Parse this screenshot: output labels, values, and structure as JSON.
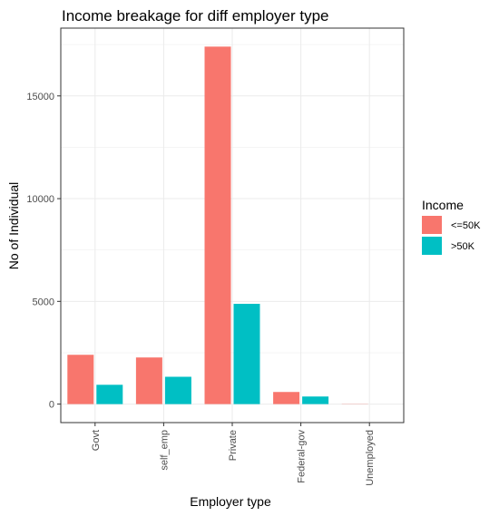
{
  "chart_data": {
    "type": "bar",
    "title": "Income breakage for diff employer type",
    "xlabel": "Employer type",
    "ylabel": "No of Individual",
    "categories": [
      "Govt",
      "self_emp",
      "Private",
      "Federal-gov",
      "Unemployed"
    ],
    "series": [
      {
        "name": "<=50K",
        "color": "#F8766D",
        "values": [
          2400,
          2270,
          17400,
          590,
          10
        ]
      },
      {
        "name": ">50K",
        "color": "#00BFC4",
        "values": [
          940,
          1330,
          4880,
          370,
          0
        ]
      }
    ],
    "ylim": [
      -900,
      18300
    ],
    "yticks": [
      0,
      5000,
      10000,
      15000
    ],
    "ytick_labels": [
      "0",
      "5000",
      "10000",
      "15000"
    ],
    "grid": true,
    "legend": {
      "title": "Income",
      "placement": "right"
    }
  }
}
